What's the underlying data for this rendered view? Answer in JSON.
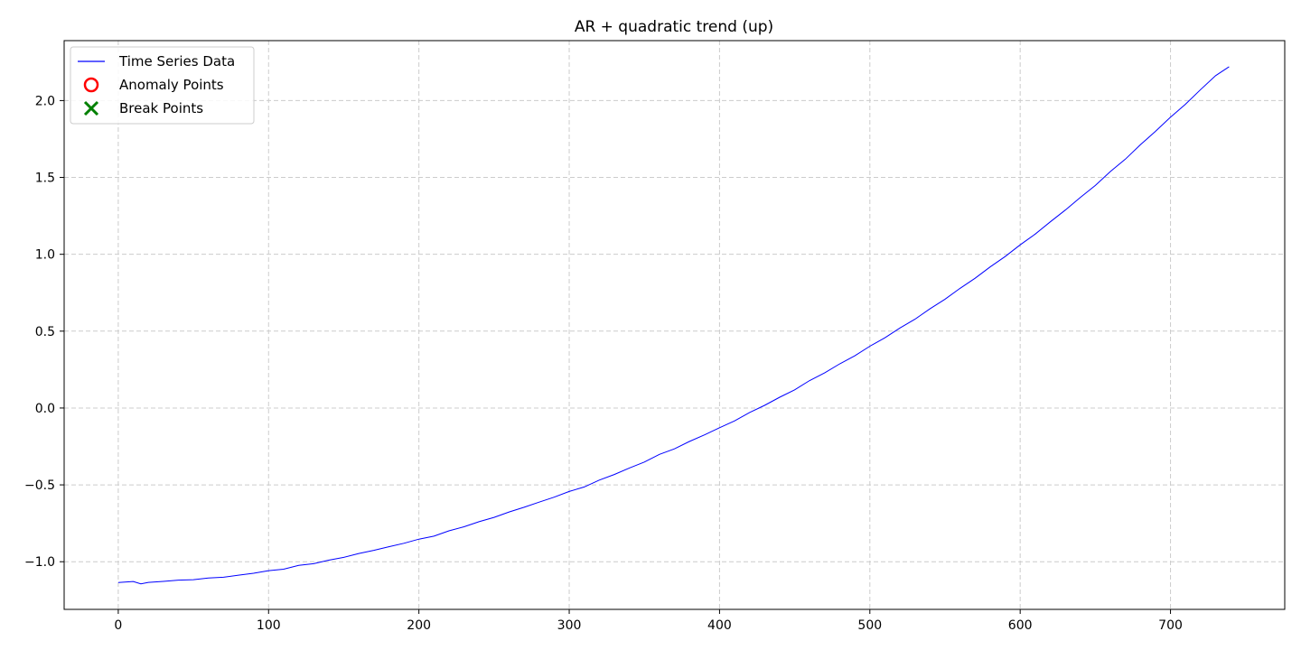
{
  "chart_data": {
    "type": "line",
    "title": "AR + quadratic trend (up)",
    "xlabel": "",
    "ylabel": "",
    "xlim": [
      -36,
      776
    ],
    "ylim": [
      -1.31,
      2.39
    ],
    "x_ticks": [
      0,
      100,
      200,
      300,
      400,
      500,
      600,
      700
    ],
    "x_tick_labels": [
      "0",
      "100",
      "200",
      "300",
      "400",
      "500",
      "600",
      "700"
    ],
    "y_ticks": [
      -1.0,
      -0.5,
      0.0,
      0.5,
      1.0,
      1.5,
      2.0
    ],
    "y_tick_labels": [
      "−1.0",
      "−0.5",
      "0.0",
      "0.5",
      "1.0",
      "1.5",
      "2.0"
    ],
    "grid": true,
    "legend_position": "upper-left",
    "legend": [
      {
        "label": "Time Series Data",
        "marker": "line",
        "color": "#0000ff"
      },
      {
        "label": "Anomaly Points",
        "marker": "circle",
        "color": "#ff0000"
      },
      {
        "label": "Break Points",
        "marker": "x",
        "color": "#008000"
      }
    ],
    "series": [
      {
        "name": "Time Series Data",
        "color": "#0000ff",
        "x": [
          0,
          10,
          15,
          20,
          30,
          40,
          50,
          60,
          70,
          80,
          90,
          100,
          110,
          120,
          130,
          140,
          150,
          160,
          170,
          180,
          190,
          200,
          210,
          220,
          230,
          240,
          250,
          260,
          270,
          280,
          290,
          300,
          310,
          320,
          330,
          340,
          350,
          360,
          370,
          380,
          390,
          400,
          410,
          420,
          430,
          440,
          450,
          460,
          470,
          480,
          490,
          500,
          510,
          520,
          530,
          540,
          550,
          560,
          570,
          580,
          590,
          600,
          610,
          620,
          630,
          640,
          650,
          660,
          670,
          680,
          690,
          700,
          710,
          720,
          730,
          739
        ],
        "values": [
          -1.135,
          -1.13,
          -1.14,
          -1.135,
          -1.125,
          -1.12,
          -1.115,
          -1.11,
          -1.1,
          -1.09,
          -1.075,
          -1.06,
          -1.045,
          -1.025,
          -1.01,
          -0.99,
          -0.97,
          -0.95,
          -0.925,
          -0.905,
          -0.88,
          -0.855,
          -0.83,
          -0.8,
          -0.77,
          -0.74,
          -0.71,
          -0.68,
          -0.645,
          -0.615,
          -0.58,
          -0.545,
          -0.51,
          -0.47,
          -0.43,
          -0.39,
          -0.35,
          -0.305,
          -0.265,
          -0.22,
          -0.175,
          -0.13,
          -0.08,
          -0.03,
          0.02,
          0.07,
          0.12,
          0.175,
          0.23,
          0.285,
          0.34,
          0.4,
          0.46,
          0.52,
          0.58,
          0.645,
          0.71,
          0.775,
          0.845,
          0.915,
          0.985,
          1.06,
          1.135,
          1.21,
          1.29,
          1.37,
          1.45,
          1.535,
          1.62,
          1.71,
          1.8,
          1.89,
          1.98,
          2.07,
          2.165,
          2.22
        ]
      }
    ],
    "anomaly_points": [],
    "break_points": []
  }
}
